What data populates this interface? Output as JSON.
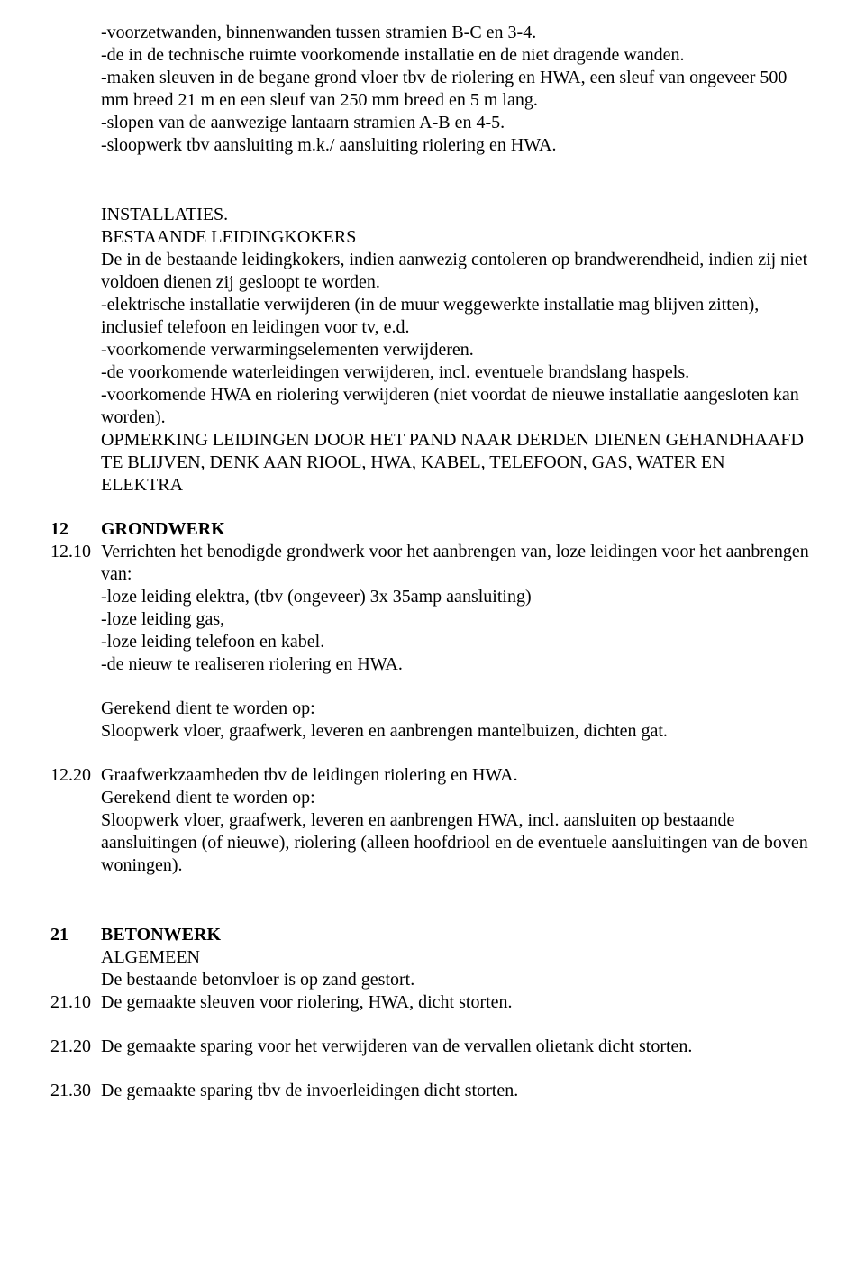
{
  "intro_lines": [
    "-voorzetwanden, binnenwanden tussen stramien B-C en 3-4.",
    "-de in de technische ruimte voorkomende installatie en de niet dragende wanden.",
    "-maken sleuven in de begane grond vloer tbv de riolering en HWA, een sleuf van ongeveer 500 mm breed 21 m en een sleuf van 250 mm breed en 5 m lang.",
    "-slopen van de aanwezige lantaarn stramien A-B en 4-5.",
    "-sloopwerk tbv aansluiting m.k./ aansluiting riolering en HWA."
  ],
  "installaties_heading": "INSTALLATIES.",
  "installaties_sub": "BESTAANDE LEIDINGKOKERS",
  "installaties_body": [
    "De in de bestaande leidingkokers, indien aanwezig contoleren op brandwerendheid, indien zij niet voldoen dienen zij gesloopt te worden.",
    "-elektrische installatie verwijderen (in de muur weggewerkte installatie mag blijven zitten), inclusief telefoon en leidingen voor tv, e.d.",
    "-voorkomende verwarmingselementen verwijderen.",
    "-de voorkomende waterleidingen verwijderen, incl. eventuele brandslang haspels.",
    "-voorkomende HWA en riolering verwijderen (niet voordat de nieuwe installatie aangesloten kan worden).",
    "OPMERKING LEIDINGEN DOOR HET PAND NAAR DERDEN DIENEN GEHANDHAAFD TE BLIJVEN, DENK AAN RIOOL, HWA, KABEL, TELEFOON, GAS, WATER EN ELEKTRA"
  ],
  "s12": {
    "num": "12",
    "title": "GRONDWERK"
  },
  "s12_10": {
    "num": "12.10",
    "lines": [
      "Verrichten het benodigde grondwerk voor het aanbrengen van, loze leidingen voor het aanbrengen van:",
      "-loze leiding elektra, (tbv (ongeveer) 3x 35amp aansluiting)",
      "-loze leiding gas,",
      "-loze leiding telefoon en kabel.",
      "-de nieuw te realiseren riolering en HWA."
    ],
    "after": [
      "Gerekend dient te worden op:",
      "Sloopwerk vloer, graafwerk, leveren en aanbrengen mantelbuizen, dichten gat."
    ]
  },
  "s12_20": {
    "num": "12.20",
    "lines": [
      "Graafwerkzaamheden tbv de leidingen riolering en HWA.",
      "Gerekend dient te worden op:",
      "Sloopwerk vloer, graafwerk, leveren en aanbrengen HWA, incl. aansluiten op bestaande aansluitingen (of nieuwe), riolering (alleen hoofdriool en de eventuele aansluitingen van de boven woningen)."
    ]
  },
  "s21": {
    "num": "21",
    "title": "BETONWERK",
    "sub1": "ALGEMEEN",
    "sub2": "De bestaande betonvloer is op zand gestort."
  },
  "s21_10": {
    "num": "21.10",
    "text": " De gemaakte sleuven voor riolering, HWA, dicht storten."
  },
  "s21_20": {
    "num": "21.20",
    "text": "De gemaakte sparing voor het verwijderen van de vervallen olietank dicht storten."
  },
  "s21_30": {
    "num": "21.30",
    "text": "De gemaakte sparing tbv de invoerleidingen dicht storten."
  }
}
